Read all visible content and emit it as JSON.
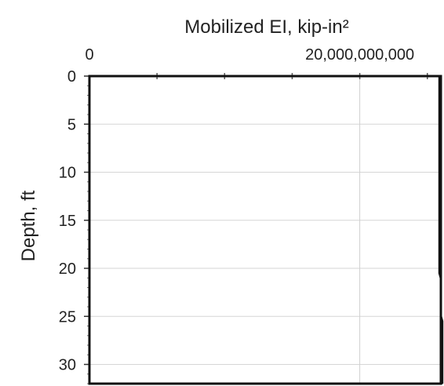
{
  "chart_data": {
    "type": "line",
    "title": "Mobilized EI, kip-in²",
    "xlabel": "Mobilized EI, kip-in²",
    "ylabel": "Depth, ft",
    "xaxis_position": "top",
    "yaxis_inverted": true,
    "xlim": [
      0,
      26000000000
    ],
    "ylim": [
      0,
      32
    ],
    "xticks": [
      0,
      20000000000
    ],
    "xtick_labels": [
      "0",
      "20,000,000,000"
    ],
    "xminor_ticks": [
      5000000000,
      10000000000,
      15000000000,
      20000000000,
      25000000000
    ],
    "yticks": [
      0,
      5,
      10,
      15,
      20,
      25,
      30
    ],
    "ytick_labels": [
      "0",
      "5",
      "10",
      "15",
      "20",
      "25",
      "30"
    ],
    "grid": true,
    "series": [
      {
        "color": "#111111",
        "points": [
          {
            "x": 25900000000,
            "y": 0
          },
          {
            "x": 25900000000,
            "y": 20.5
          },
          {
            "x": 26000000000,
            "y": 21.0
          },
          {
            "x": 26000000000,
            "y": 25.0
          },
          {
            "x": 26100000000,
            "y": 25.5
          },
          {
            "x": 26100000000,
            "y": 32
          }
        ]
      }
    ]
  }
}
